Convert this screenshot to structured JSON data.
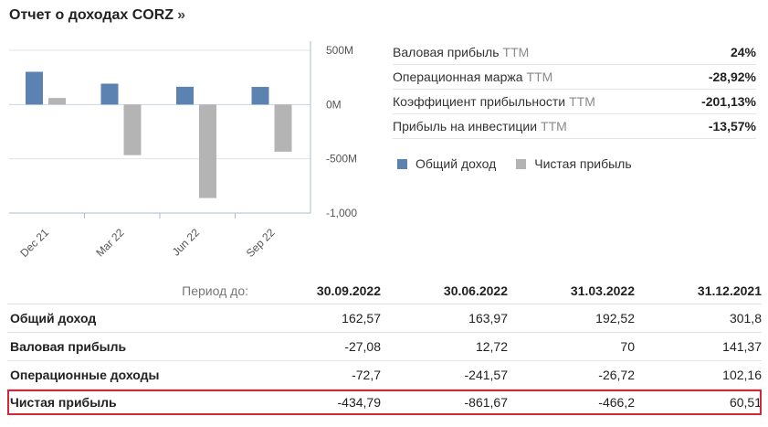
{
  "header": {
    "title": "Отчет о доходах CORZ",
    "arrow": "»"
  },
  "colors": {
    "total_revenue": "#5b82b0",
    "net_income": "#b4b4b4",
    "highlight": "#d3263a"
  },
  "chart_data": {
    "type": "bar",
    "categories": [
      "Dec 21",
      "Mar 22",
      "Jun 22",
      "Sep 22"
    ],
    "series": [
      {
        "name": "Общий доход",
        "values": [
          301.8,
          192.52,
          163.97,
          162.57
        ]
      },
      {
        "name": "Чистая прибыль",
        "values": [
          60.51,
          -466.2,
          -861.67,
          -434.79
        ]
      }
    ],
    "ylim": [
      -1000,
      500
    ],
    "yticks": [
      500,
      0,
      -500,
      -1000
    ],
    "ytick_labels": [
      "500M",
      "0M",
      "-500M",
      "-1,000"
    ],
    "title": "",
    "xlabel": "",
    "ylabel": "",
    "legend": "right"
  },
  "metrics": [
    {
      "label": "Валовая прибыль",
      "ttm": "TTM",
      "value": "24%"
    },
    {
      "label": "Операционная маржа",
      "ttm": "TTM",
      "value": "-28,92%"
    },
    {
      "label": "Коэффициент прибыльности",
      "ttm": "TTM",
      "value": "-201,13%"
    },
    {
      "label": "Прибыль на инвестиции",
      "ttm": "TTM",
      "value": "-13,57%"
    }
  ],
  "legend": {
    "total_revenue": "Общий доход",
    "net_income": "Чистая прибыль"
  },
  "table": {
    "period_label": "Период до:",
    "periods": [
      "30.09.2022",
      "30.06.2022",
      "31.03.2022",
      "31.12.2021"
    ],
    "rows": [
      {
        "label": "Общий доход",
        "values": [
          "162,57",
          "163,97",
          "192,52",
          "301,8"
        ]
      },
      {
        "label": "Валовая прибыль",
        "values": [
          "-27,08",
          "12,72",
          "70",
          "141,37"
        ]
      },
      {
        "label": "Операционные доходы",
        "values": [
          "-72,7",
          "-241,57",
          "-26,72",
          "102,16"
        ]
      },
      {
        "label": "Чистая прибыль",
        "values": [
          "-434,79",
          "-861,67",
          "-466,2",
          "60,51"
        ]
      }
    ]
  }
}
